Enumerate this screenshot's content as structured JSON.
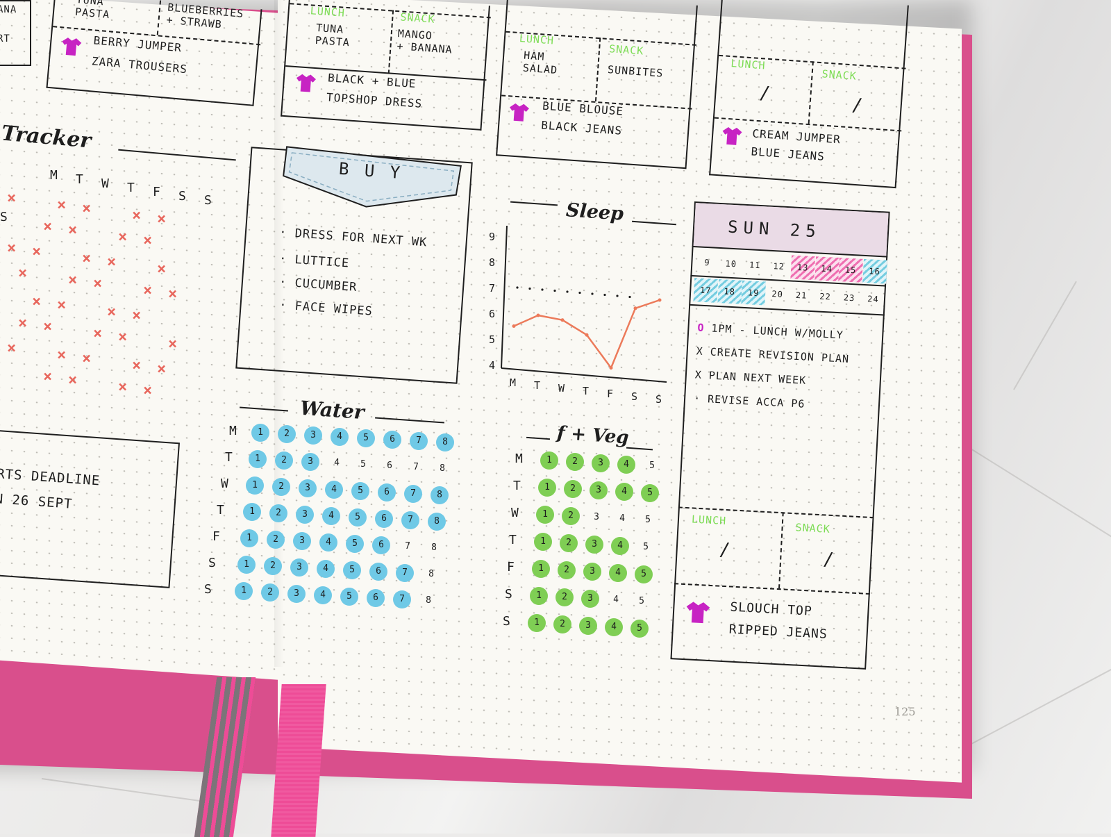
{
  "colors": {
    "cover": "#d94f8c",
    "ribbon_pink": "#ee4c97",
    "ribbon_grey": "#7c7479",
    "accent_green": "#7ddc55",
    "water_blue": "#6fc9e6",
    "veg_green": "#7fce54",
    "sleep_line": "#ec7a5a",
    "shirt": "#c723c3",
    "day_header": "#eadbe6",
    "stripe_pink": "#ef6fb1",
    "stripe_blue": "#75cde0"
  },
  "left_page": {
    "top_cells": [
      {
        "text": "ANA"
      },
      {
        "text": "RT"
      }
    ],
    "mon_box": {
      "lunch": "TUNA\nPASTA",
      "snack": "BLUEBERRIES\n+ STRAWB",
      "outfit_line1": "BERRY JUMPER",
      "outfit_line2": "ZARA TROUSERS"
    },
    "tracker": {
      "title": "Tracker",
      "days": [
        "M",
        "T",
        "W",
        "T",
        "F",
        "S",
        "S"
      ],
      "left_letter": "S"
    },
    "deadline": {
      "line1": "RTS DEADLINE",
      "line2": "N 26 SEPT"
    }
  },
  "right_page": {
    "tue": {
      "lunch_label": "LUNCH",
      "snack_label": "SNACK",
      "lunch": "TUNA\nPASTA",
      "snack": "MANGO\n+ BANANA",
      "outfit_line1": "BLACK + BLUE",
      "outfit_line2": "TOPSHOP DRESS"
    },
    "wed": {
      "lunch_label": "LUNCH",
      "snack_label": "SNACK",
      "lunch": "HAM\nSALAD",
      "snack": "SUNBITES",
      "outfit_line1": "BLUE BLOUSE",
      "outfit_line2": "BLACK JEANS"
    },
    "thu": {
      "lunch_label": "LUNCH",
      "snack_label": "SNACK",
      "lunch": "/",
      "snack": "/",
      "outfit_line1": "CREAM JUMPER",
      "outfit_line2": "BLUE JEANS"
    },
    "buy": {
      "title": "B U Y",
      "items": [
        "DRESS FOR NEXT WK",
        "LUTTICE",
        "CUCUMBER",
        "FACE WIPES"
      ]
    },
    "sleep": {
      "title": "Sleep",
      "y_ticks": [
        "9",
        "8",
        "7",
        "6",
        "5",
        "4"
      ],
      "days": [
        "M",
        "T",
        "W",
        "T",
        "F",
        "S",
        "S"
      ]
    },
    "water": {
      "title": "Water",
      "days": [
        "M",
        "T",
        "W",
        "T",
        "F",
        "S",
        "S"
      ],
      "numbers": [
        "1",
        "2",
        "3",
        "4",
        "5",
        "6",
        "7",
        "8"
      ],
      "filled": [
        8,
        3,
        8,
        8,
        6,
        7,
        7
      ]
    },
    "fveg": {
      "title": "f + Veg",
      "days": [
        "M",
        "T",
        "W",
        "T",
        "F",
        "S",
        "S"
      ],
      "numbers": [
        "1",
        "2",
        "3",
        "4",
        "5"
      ],
      "filled": [
        4,
        5,
        2,
        4,
        5,
        3,
        5
      ]
    },
    "sunday": {
      "header": "SUN  25",
      "hours_row1": [
        "9",
        "10",
        "11",
        "12",
        "13",
        "14",
        "15",
        "16"
      ],
      "hours_row2": [
        "17",
        "18",
        "19",
        "20",
        "21",
        "22",
        "23",
        "24"
      ],
      "tasks": [
        {
          "bullet": "o",
          "text": "1PM - LUNCH W/MOLLY"
        },
        {
          "bullet": "x",
          "text": "CREATE REVISION PLAN"
        },
        {
          "bullet": "x",
          "text": "PLAN NEXT WEEK"
        },
        {
          "bullet": "·",
          "text": "REVISE ACCA P6"
        }
      ],
      "lunch_label": "LUNCH",
      "snack_label": "SNACK",
      "lunch": "/",
      "snack": "/",
      "outfit_line1": "SLOUCH TOP",
      "outfit_line2": "RIPPED JEANS"
    },
    "page_number": "125"
  },
  "chart_data": {
    "type": "line",
    "title": "Sleep",
    "categories": [
      "M",
      "T",
      "W",
      "T",
      "F",
      "S",
      "S"
    ],
    "series": [
      {
        "values": [
          5.5,
          6.0,
          5.9,
          5.4,
          4.2,
          6.6,
          7.0
        ]
      }
    ],
    "y_ticks": [
      9,
      8,
      7,
      6,
      5,
      4
    ],
    "ylim": [
      4,
      9
    ],
    "reference_line": 7
  }
}
